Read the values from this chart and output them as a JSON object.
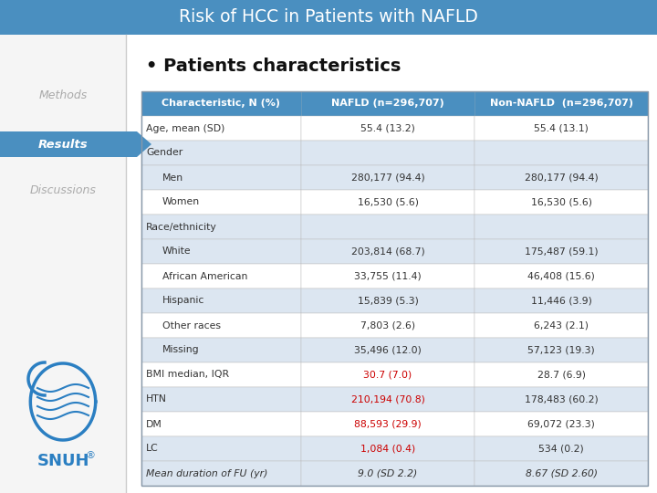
{
  "title": "Risk of HCC in Patients with NAFLD",
  "title_bg": "#4a8fc0",
  "title_color": "#ffffff",
  "sidebar_active_bg": "#4a8fc0",
  "section_title": "• Patients characteristics",
  "header_bg": "#4a8fc0",
  "header_color": "#ffffff",
  "col_headers": [
    "Characteristic, N (%)",
    "NAFLD (n=296,707)",
    "Non-NAFLD  (n=296,707)"
  ],
  "rows": [
    {
      "label": "Age, mean (SD)",
      "indent": 0,
      "nafld": "55.4 (13.2)",
      "non_nafld": "55.4 (13.1)",
      "nafld_red": false,
      "non_nafld_red": false,
      "row_bg": "#ffffff",
      "label_italic": false
    },
    {
      "label": "Gender",
      "indent": 0,
      "nafld": "",
      "non_nafld": "",
      "nafld_red": false,
      "non_nafld_red": false,
      "row_bg": "#dce6f1",
      "label_italic": false
    },
    {
      "label": "Men",
      "indent": 1,
      "nafld": "280,177 (94.4)",
      "non_nafld": "280,177 (94.4)",
      "nafld_red": false,
      "non_nafld_red": false,
      "row_bg": "#dce6f1",
      "label_italic": false
    },
    {
      "label": "Women",
      "indent": 1,
      "nafld": "16,530 (5.6)",
      "non_nafld": "16,530 (5.6)",
      "nafld_red": false,
      "non_nafld_red": false,
      "row_bg": "#ffffff",
      "label_italic": false
    },
    {
      "label": "Race/ethnicity",
      "indent": 0,
      "nafld": "",
      "non_nafld": "",
      "nafld_red": false,
      "non_nafld_red": false,
      "row_bg": "#dce6f1",
      "label_italic": false
    },
    {
      "label": "White",
      "indent": 1,
      "nafld": "203,814 (68.7)",
      "non_nafld": "175,487 (59.1)",
      "nafld_red": false,
      "non_nafld_red": false,
      "row_bg": "#dce6f1",
      "label_italic": false
    },
    {
      "label": "African American",
      "indent": 1,
      "nafld": "33,755 (11.4)",
      "non_nafld": "46,408 (15.6)",
      "nafld_red": false,
      "non_nafld_red": false,
      "row_bg": "#ffffff",
      "label_italic": false
    },
    {
      "label": "Hispanic",
      "indent": 1,
      "nafld": "15,839 (5.3)",
      "non_nafld": "11,446 (3.9)",
      "nafld_red": false,
      "non_nafld_red": false,
      "row_bg": "#dce6f1",
      "label_italic": false
    },
    {
      "label": "Other races",
      "indent": 1,
      "nafld": "7,803 (2.6)",
      "non_nafld": "6,243 (2.1)",
      "nafld_red": false,
      "non_nafld_red": false,
      "row_bg": "#ffffff",
      "label_italic": false
    },
    {
      "label": "Missing",
      "indent": 1,
      "nafld": "35,496 (12.0)",
      "non_nafld": "57,123 (19.3)",
      "nafld_red": false,
      "non_nafld_red": false,
      "row_bg": "#dce6f1",
      "label_italic": false
    },
    {
      "label": "BMI median, IQR",
      "indent": 0,
      "nafld": "30.7 (7.0)",
      "non_nafld": "28.7 (6.9)",
      "nafld_red": true,
      "non_nafld_red": false,
      "row_bg": "#ffffff",
      "label_italic": false
    },
    {
      "label": "HTN",
      "indent": 0,
      "nafld": "210,194 (70.8)",
      "non_nafld": "178,483 (60.2)",
      "nafld_red": true,
      "non_nafld_red": false,
      "row_bg": "#dce6f1",
      "label_italic": false
    },
    {
      "label": "DM",
      "indent": 0,
      "nafld": "88,593 (29.9)",
      "non_nafld": "69,072 (23.3)",
      "nafld_red": true,
      "non_nafld_red": false,
      "row_bg": "#ffffff",
      "label_italic": false
    },
    {
      "label": "LC",
      "indent": 0,
      "nafld": "1,084 (0.4)",
      "non_nafld": "534 (0.2)",
      "nafld_red": true,
      "non_nafld_red": false,
      "row_bg": "#dce6f1",
      "label_italic": false
    },
    {
      "label": "Mean duration of FU (yr)",
      "indent": 0,
      "nafld": "9.0 (SD 2.2)",
      "non_nafld": "8.67 (SD 2.60)",
      "nafld_red": false,
      "non_nafld_red": false,
      "row_bg": "#dce6f1",
      "label_italic": true
    }
  ],
  "red_color": "#cc0000",
  "normal_color": "#333333",
  "snuh_color": "#2b7fc2",
  "sidebar_items": [
    {
      "text": "Methods",
      "active": false
    },
    {
      "text": "Results",
      "active": true
    },
    {
      "text": "Discussions",
      "active": false
    }
  ]
}
